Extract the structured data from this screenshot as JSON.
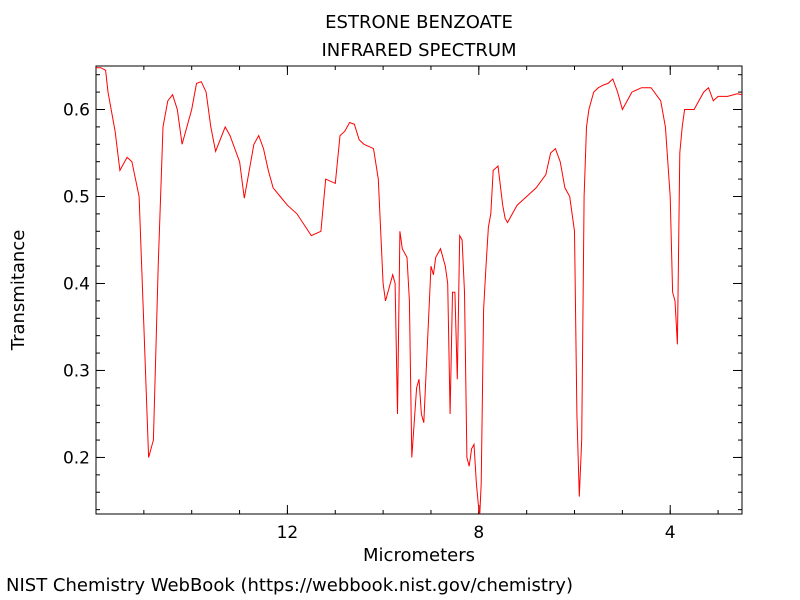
{
  "chart_data": {
    "type": "line",
    "title": "ESTRONE BENZOATE",
    "subtitle": "INFRARED SPECTRUM",
    "xlabel": "Micrometers",
    "ylabel": "Transmitance",
    "x_reversed": true,
    "xlim": [
      16.0,
      2.5
    ],
    "ylim": [
      0.135,
      0.65
    ],
    "xticks": [
      12,
      8,
      4
    ],
    "yticks": [
      0.2,
      0.3,
      0.4,
      0.5,
      0.6
    ],
    "grid": false,
    "line_color": "#ff0000",
    "series": [
      {
        "x": [
          16.0,
          15.9,
          15.8,
          15.75,
          15.6,
          15.5,
          15.35,
          15.25,
          15.1,
          15.0,
          14.9,
          14.8,
          14.7,
          14.6,
          14.5,
          14.4,
          14.3,
          14.2,
          14.0,
          13.9,
          13.8,
          13.7,
          13.6,
          13.5,
          13.3,
          13.2,
          13.0,
          12.9,
          12.7,
          12.6,
          12.5,
          12.4,
          12.3,
          12.15,
          12.0,
          11.8,
          11.5,
          11.3,
          11.2,
          11.0,
          10.9,
          10.8,
          10.7,
          10.6,
          10.5,
          10.4,
          10.2,
          10.1,
          10.0,
          9.95,
          9.9,
          9.8,
          9.75,
          9.7,
          9.65,
          9.6,
          9.5,
          9.45,
          9.4,
          9.3,
          9.25,
          9.2,
          9.15,
          9.1,
          9.0,
          8.95,
          8.9,
          8.8,
          8.7,
          8.65,
          8.6,
          8.55,
          8.5,
          8.45,
          8.4,
          8.35,
          8.3,
          8.25,
          8.2,
          8.15,
          8.1,
          8.05,
          8.0,
          7.98,
          7.95,
          7.9,
          7.85,
          7.8,
          7.75,
          7.7,
          7.6,
          7.5,
          7.45,
          7.4,
          7.3,
          7.2,
          7.0,
          6.8,
          6.6,
          6.5,
          6.4,
          6.3,
          6.2,
          6.1,
          6.0,
          5.95,
          5.9,
          5.85,
          5.8,
          5.75,
          5.7,
          5.6,
          5.5,
          5.4,
          5.3,
          5.2,
          5.1,
          5.0,
          4.9,
          4.8,
          4.6,
          4.4,
          4.2,
          4.1,
          4.0,
          3.95,
          3.9,
          3.85,
          3.8,
          3.75,
          3.7,
          3.6,
          3.5,
          3.4,
          3.3,
          3.2,
          3.1,
          3.0,
          2.8,
          2.6,
          2.5
        ],
        "y": [
          0.648,
          0.648,
          0.645,
          0.62,
          0.575,
          0.53,
          0.545,
          0.54,
          0.5,
          0.35,
          0.2,
          0.22,
          0.42,
          0.58,
          0.61,
          0.617,
          0.6,
          0.56,
          0.6,
          0.63,
          0.632,
          0.62,
          0.58,
          0.552,
          0.58,
          0.57,
          0.54,
          0.498,
          0.56,
          0.57,
          0.555,
          0.53,
          0.51,
          0.5,
          0.49,
          0.48,
          0.455,
          0.46,
          0.52,
          0.515,
          0.57,
          0.575,
          0.585,
          0.583,
          0.565,
          0.56,
          0.555,
          0.52,
          0.4,
          0.38,
          0.39,
          0.41,
          0.4,
          0.25,
          0.46,
          0.44,
          0.43,
          0.38,
          0.2,
          0.28,
          0.29,
          0.25,
          0.24,
          0.3,
          0.42,
          0.41,
          0.43,
          0.44,
          0.42,
          0.4,
          0.25,
          0.39,
          0.39,
          0.29,
          0.455,
          0.45,
          0.39,
          0.2,
          0.19,
          0.21,
          0.215,
          0.17,
          0.14,
          0.135,
          0.17,
          0.37,
          0.42,
          0.465,
          0.48,
          0.53,
          0.535,
          0.49,
          0.475,
          0.47,
          0.48,
          0.49,
          0.5,
          0.51,
          0.525,
          0.55,
          0.555,
          0.54,
          0.51,
          0.5,
          0.46,
          0.25,
          0.155,
          0.22,
          0.5,
          0.58,
          0.6,
          0.62,
          0.625,
          0.628,
          0.63,
          0.635,
          0.62,
          0.6,
          0.61,
          0.62,
          0.625,
          0.625,
          0.61,
          0.58,
          0.5,
          0.39,
          0.38,
          0.33,
          0.55,
          0.58,
          0.6,
          0.6,
          0.6,
          0.61,
          0.62,
          0.625,
          0.61,
          0.615,
          0.615,
          0.618,
          0.617
        ]
      }
    ]
  },
  "footer": "NIST Chemistry WebBook (https://webbook.nist.gov/chemistry)"
}
